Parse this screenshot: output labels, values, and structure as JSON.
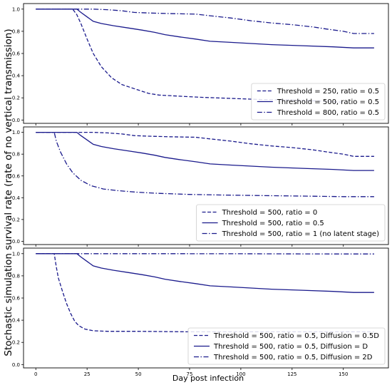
{
  "figure": {
    "ylabel": "Stochastic simulation survival rate (rate of no vertical transmission)",
    "xlabel": "Day post infection"
  },
  "colors": {
    "line": "#1a1a8c",
    "axes": "#000000",
    "legend_border": "#cccccc"
  },
  "chart_data": [
    {
      "type": "line",
      "xlim": [
        -6,
        172
      ],
      "ylim": [
        -0.03,
        1.05
      ],
      "xticks": [
        0,
        25,
        50,
        75,
        100,
        125,
        150
      ],
      "yticks": [
        0.0,
        0.2,
        0.4,
        0.6,
        0.8,
        1.0
      ],
      "show_xticklabels": false,
      "grid": false,
      "legend": "lower-right",
      "series": [
        {
          "name": "Threshold = 250, ratio = 0.5",
          "style": "dashed",
          "points": [
            [
              0,
              1.0
            ],
            [
              18,
              1.0
            ],
            [
              20,
              0.95
            ],
            [
              22,
              0.87
            ],
            [
              25,
              0.73
            ],
            [
              28,
              0.6
            ],
            [
              32,
              0.48
            ],
            [
              37,
              0.38
            ],
            [
              42,
              0.32
            ],
            [
              50,
              0.27
            ],
            [
              55,
              0.24
            ],
            [
              60,
              0.225
            ],
            [
              70,
              0.215
            ],
            [
              80,
              0.205
            ],
            [
              95,
              0.195
            ],
            [
              110,
              0.185
            ],
            [
              125,
              0.18
            ],
            [
              140,
              0.17
            ],
            [
              150,
              0.16
            ]
          ]
        },
        {
          "name": "Threshold = 500, ratio = 0.5",
          "style": "solid",
          "points": [
            [
              0,
              1.0
            ],
            [
              20,
              1.0
            ],
            [
              22,
              0.97
            ],
            [
              25,
              0.93
            ],
            [
              28,
              0.89
            ],
            [
              32,
              0.87
            ],
            [
              38,
              0.85
            ],
            [
              45,
              0.83
            ],
            [
              52,
              0.81
            ],
            [
              58,
              0.79
            ],
            [
              63,
              0.77
            ],
            [
              70,
              0.75
            ],
            [
              78,
              0.73
            ],
            [
              85,
              0.71
            ],
            [
              95,
              0.7
            ],
            [
              105,
              0.69
            ],
            [
              115,
              0.68
            ],
            [
              130,
              0.67
            ],
            [
              145,
              0.66
            ],
            [
              155,
              0.65
            ],
            [
              165,
              0.65
            ]
          ]
        },
        {
          "name": "Threshold = 800, ratio = 0.5",
          "style": "dashdot",
          "points": [
            [
              0,
              1.0
            ],
            [
              28,
              1.0
            ],
            [
              35,
              0.995
            ],
            [
              42,
              0.985
            ],
            [
              48,
              0.97
            ],
            [
              55,
              0.965
            ],
            [
              65,
              0.96
            ],
            [
              78,
              0.955
            ],
            [
              85,
              0.94
            ],
            [
              95,
              0.92
            ],
            [
              105,
              0.895
            ],
            [
              115,
              0.875
            ],
            [
              125,
              0.86
            ],
            [
              135,
              0.84
            ],
            [
              142,
              0.82
            ],
            [
              150,
              0.8
            ],
            [
              155,
              0.78
            ],
            [
              165,
              0.78
            ]
          ]
        }
      ]
    },
    {
      "type": "line",
      "xlim": [
        -6,
        172
      ],
      "ylim": [
        -0.03,
        1.05
      ],
      "xticks": [
        0,
        25,
        50,
        75,
        100,
        125,
        150
      ],
      "yticks": [
        0.0,
        0.2,
        0.4,
        0.6,
        0.8,
        1.0
      ],
      "show_xticklabels": false,
      "grid": false,
      "legend": "lower-right",
      "series": [
        {
          "name": "Threshold = 500, ratio = 0",
          "style": "dashed",
          "points": [
            [
              0,
              1.0
            ],
            [
              28,
              1.0
            ],
            [
              35,
              0.995
            ],
            [
              42,
              0.985
            ],
            [
              48,
              0.97
            ],
            [
              55,
              0.965
            ],
            [
              65,
              0.96
            ],
            [
              78,
              0.955
            ],
            [
              85,
              0.94
            ],
            [
              95,
              0.92
            ],
            [
              105,
              0.895
            ],
            [
              115,
              0.875
            ],
            [
              125,
              0.86
            ],
            [
              135,
              0.84
            ],
            [
              142,
              0.82
            ],
            [
              150,
              0.8
            ],
            [
              155,
              0.78
            ],
            [
              165,
              0.78
            ]
          ]
        },
        {
          "name": "Threshold = 500, ratio = 0.5",
          "style": "solid",
          "points": [
            [
              0,
              1.0
            ],
            [
              20,
              1.0
            ],
            [
              22,
              0.97
            ],
            [
              25,
              0.93
            ],
            [
              28,
              0.89
            ],
            [
              32,
              0.87
            ],
            [
              38,
              0.85
            ],
            [
              45,
              0.83
            ],
            [
              52,
              0.81
            ],
            [
              58,
              0.79
            ],
            [
              63,
              0.77
            ],
            [
              70,
              0.75
            ],
            [
              78,
              0.73
            ],
            [
              85,
              0.71
            ],
            [
              95,
              0.7
            ],
            [
              105,
              0.69
            ],
            [
              115,
              0.68
            ],
            [
              130,
              0.67
            ],
            [
              145,
              0.66
            ],
            [
              155,
              0.65
            ],
            [
              165,
              0.65
            ]
          ]
        },
        {
          "name": "Threshold = 500, ratio = 1 (no latent stage)",
          "style": "dashdot",
          "points": [
            [
              0,
              1.0
            ],
            [
              9,
              1.0
            ],
            [
              10,
              0.92
            ],
            [
              12,
              0.82
            ],
            [
              15,
              0.71
            ],
            [
              18,
              0.63
            ],
            [
              22,
              0.56
            ],
            [
              27,
              0.51
            ],
            [
              33,
              0.48
            ],
            [
              40,
              0.465
            ],
            [
              50,
              0.45
            ],
            [
              60,
              0.44
            ],
            [
              75,
              0.43
            ],
            [
              90,
              0.425
            ],
            [
              110,
              0.42
            ],
            [
              130,
              0.415
            ],
            [
              150,
              0.41
            ],
            [
              165,
              0.41
            ]
          ]
        }
      ]
    },
    {
      "type": "line",
      "xlim": [
        -6,
        172
      ],
      "ylim": [
        -0.03,
        1.05
      ],
      "xticks": [
        0,
        25,
        50,
        75,
        100,
        125,
        150
      ],
      "yticks": [
        0.0,
        0.2,
        0.4,
        0.6,
        0.8,
        1.0
      ],
      "show_xticklabels": true,
      "grid": false,
      "legend": "lower-right",
      "series": [
        {
          "name": "Threshold = 500, ratio = 0.5, Diffusion = 0.5D",
          "style": "dashed",
          "points": [
            [
              0,
              1.0
            ],
            [
              9,
              1.0
            ],
            [
              10,
              0.88
            ],
            [
              11,
              0.78
            ],
            [
              13,
              0.66
            ],
            [
              15,
              0.55
            ],
            [
              17,
              0.46
            ],
            [
              19,
              0.39
            ],
            [
              21,
              0.35
            ],
            [
              24,
              0.32
            ],
            [
              28,
              0.305
            ],
            [
              35,
              0.3
            ],
            [
              50,
              0.3
            ],
            [
              75,
              0.295
            ],
            [
              100,
              0.295
            ],
            [
              125,
              0.295
            ],
            [
              150,
              0.295
            ],
            [
              165,
              0.295
            ]
          ]
        },
        {
          "name": "Threshold = 500, ratio = 0.5, Diffusion = D",
          "style": "solid",
          "points": [
            [
              0,
              1.0
            ],
            [
              20,
              1.0
            ],
            [
              22,
              0.97
            ],
            [
              25,
              0.93
            ],
            [
              28,
              0.89
            ],
            [
              32,
              0.87
            ],
            [
              38,
              0.85
            ],
            [
              45,
              0.83
            ],
            [
              52,
              0.81
            ],
            [
              58,
              0.79
            ],
            [
              63,
              0.77
            ],
            [
              70,
              0.75
            ],
            [
              78,
              0.73
            ],
            [
              85,
              0.71
            ],
            [
              95,
              0.7
            ],
            [
              105,
              0.69
            ],
            [
              115,
              0.68
            ],
            [
              130,
              0.67
            ],
            [
              145,
              0.66
            ],
            [
              155,
              0.65
            ],
            [
              165,
              0.65
            ]
          ]
        },
        {
          "name": "Threshold = 500, ratio = 0.5, Diffusion = 2D",
          "style": "dashdot",
          "points": [
            [
              0,
              1.0
            ],
            [
              60,
              1.0
            ],
            [
              100,
              0.999
            ],
            [
              130,
              0.998
            ],
            [
              150,
              0.997
            ],
            [
              165,
              0.997
            ]
          ]
        }
      ]
    }
  ]
}
